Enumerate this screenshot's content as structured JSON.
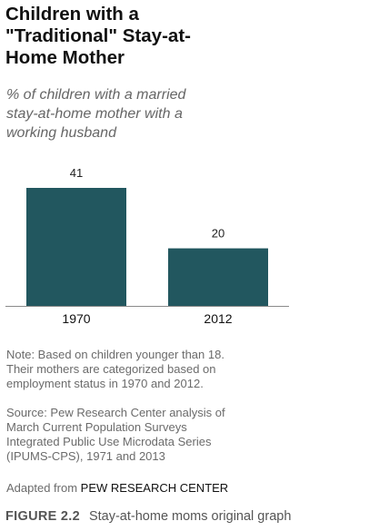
{
  "chart_data": {
    "type": "bar",
    "title": "Children with a \"Traditional\" Stay-at-Home Mother",
    "subtitle": "% of children with a married stay-at-home mother with a working husband",
    "categories": [
      "1970",
      "2012"
    ],
    "values": [
      41,
      20
    ],
    "data_labels": [
      "41",
      "20"
    ],
    "xlabel": "",
    "ylabel": "",
    "ylim": [
      0,
      45
    ],
    "grid": false,
    "bar_color": "#22575f"
  },
  "header": {
    "title": "Children with a\n\"Traditional\" Stay-at-\nHome Mother",
    "subtitle": "% of children with a married\nstay-at-home mother with a\nworking husband"
  },
  "footer": {
    "note": "Note: Based on children younger than 18.\nTheir mothers are categorized based on\nemployment status in 1970 and 2012.",
    "source": "Source: Pew Research Center analysis of\nMarch Current Population Surveys\nIntegrated Public Use Microdata Series\n(IPUMS-CPS), 1971 and 2013",
    "adapted_prefix": "Adapted from",
    "adapted_org": "PEW RESEARCH CENTER"
  },
  "caption": {
    "label": "FIGURE 2.2",
    "text": "Stay-at-home moms original graph"
  }
}
